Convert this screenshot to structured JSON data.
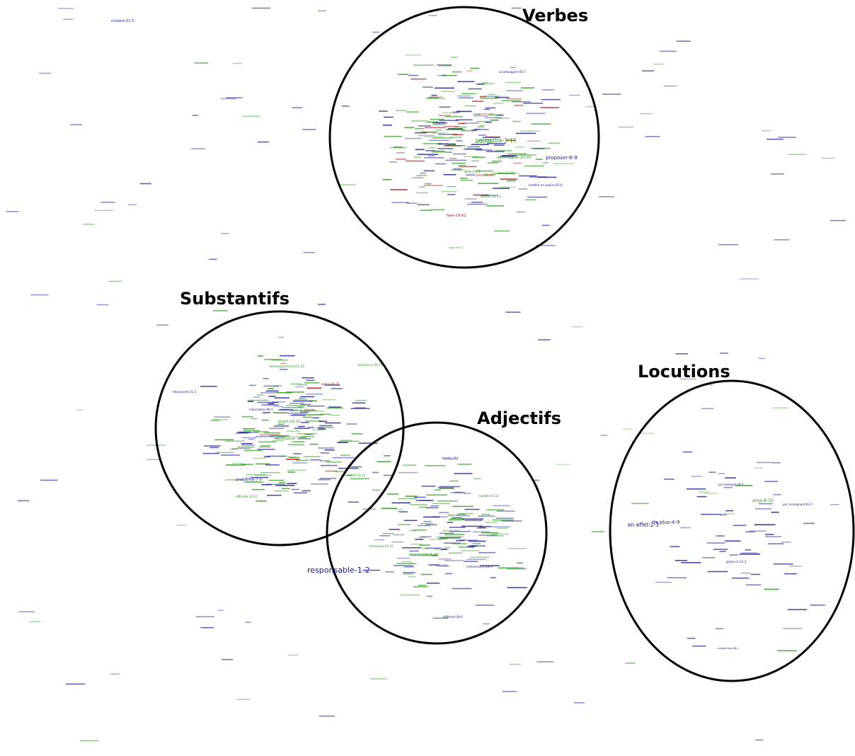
{
  "colors": {
    "blue": "#1a1a8c",
    "green": "#2a9a1a",
    "red": "#b01010",
    "ring": "#000000",
    "title": "#000000"
  },
  "clusters": [
    {
      "id": "verbes",
      "title": "Verbes"
    },
    {
      "id": "substantifs",
      "title": "Substantifs"
    },
    {
      "id": "adjectifs",
      "title": "Adjectifs"
    },
    {
      "id": "locutions",
      "title": "Locutions"
    }
  ],
  "words": [
    {
      "text": "scolaire-11-5",
      "color": "blue"
    },
    {
      "text": "permettre-3-13",
      "color": "green"
    },
    {
      "text": "proposer-6-9",
      "color": "blue"
    },
    {
      "text": "mettre en place-05-6",
      "color": "blue"
    },
    {
      "text": "développer-10-33",
      "color": "green"
    },
    {
      "text": "dire-21-5",
      "color": "green"
    },
    {
      "text": "créer-16-10",
      "color": "red"
    },
    {
      "text": "faire-18-61",
      "color": "red"
    },
    {
      "text": "réaliser-15-15",
      "color": "green"
    },
    {
      "text": "utiliser-14-11",
      "color": "green"
    },
    {
      "text": "avoir-09-27",
      "color": "green"
    },
    {
      "text": "accompagner-05-7",
      "color": "blue"
    },
    {
      "text": "développement-61-25",
      "color": "green"
    },
    {
      "text": "expérience-26-15",
      "color": "green"
    },
    {
      "text": "action-28-25",
      "color": "red"
    },
    {
      "text": "découverte-51-2",
      "color": "blue"
    },
    {
      "text": "travail-31-32",
      "color": "green"
    },
    {
      "text": "information-06-7",
      "color": "blue"
    },
    {
      "text": "projet-18-19",
      "color": "green"
    },
    {
      "text": "problème-7-5",
      "color": "blue"
    },
    {
      "text": "difficulté-32-15",
      "color": "green"
    },
    {
      "text": "intérêt-21-15",
      "color": "green"
    },
    {
      "text": "possible-78-6",
      "color": "blue"
    },
    {
      "text": "capable-41-14",
      "color": "green"
    },
    {
      "text": "important-5-29",
      "color": "green"
    },
    {
      "text": "nécessaire-40-12",
      "color": "green"
    },
    {
      "text": "intéressant-28-6",
      "color": "blue"
    },
    {
      "text": "différent-26-6",
      "color": "blue"
    },
    {
      "text": "responsable-1-2",
      "color": "blue"
    },
    {
      "text": "par exemple-34-7",
      "color": "blue"
    },
    {
      "text": "ainsi-8-10",
      "color": "green"
    },
    {
      "text": "par conséquent-03-7",
      "color": "blue"
    },
    {
      "text": "de plus-4-9",
      "color": "blue"
    },
    {
      "text": "en effet-2-3",
      "color": "blue"
    },
    {
      "text": "grâce à-12-2",
      "color": "blue"
    },
    {
      "text": "notamment-08-1",
      "color": "blue"
    }
  ]
}
